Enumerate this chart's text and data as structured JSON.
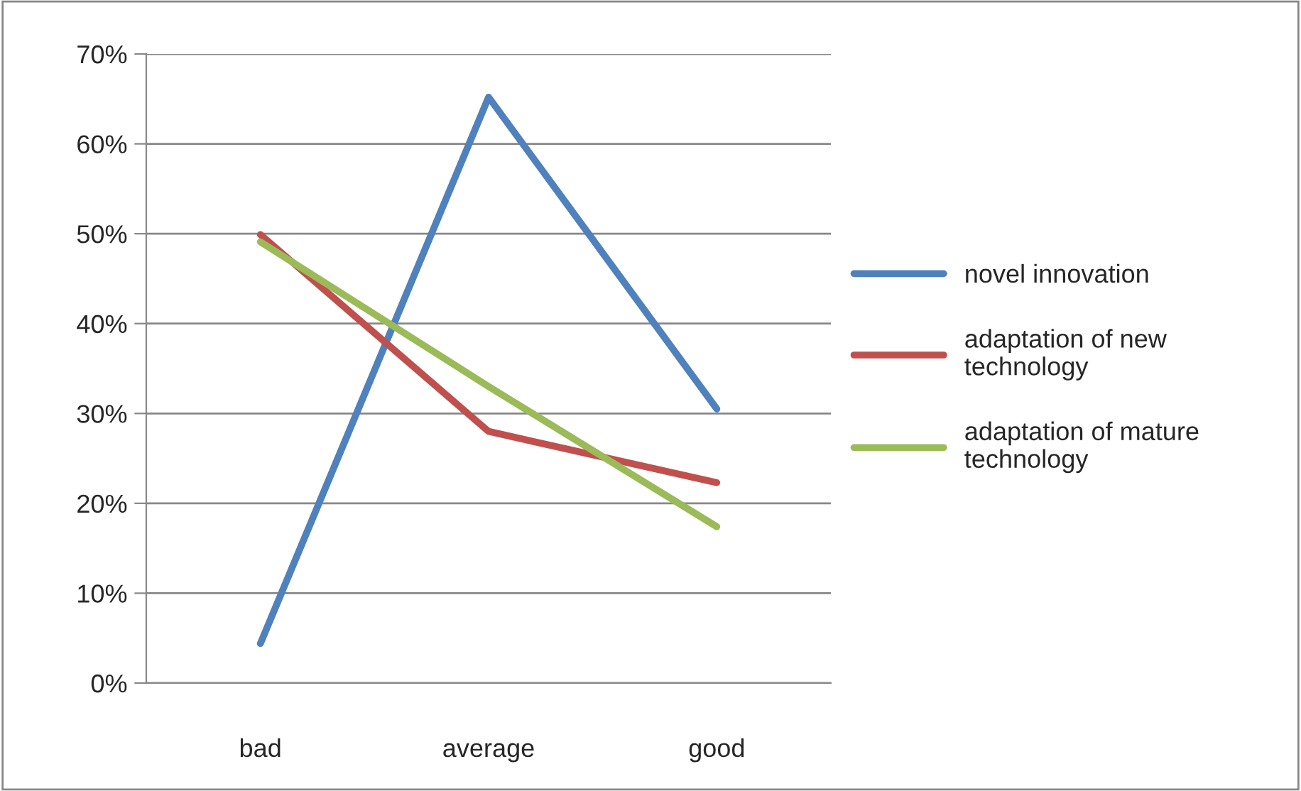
{
  "chart_data": {
    "type": "line",
    "categories": [
      "bad",
      "average",
      "good"
    ],
    "series": [
      {
        "name": "novel innovation",
        "color": "#4f81bd",
        "values": [
          4.4,
          65.2,
          30.5
        ]
      },
      {
        "name": "adaptation of new technology",
        "color": "#c0504d",
        "values": [
          49.9,
          28.0,
          22.3
        ]
      },
      {
        "name": "adaptation of mature technology",
        "color": "#9bbb59",
        "values": [
          49.1,
          33.0,
          17.4
        ]
      }
    ],
    "ylim": [
      0,
      70
    ],
    "yticks": [
      {
        "value": 0,
        "label": "0%"
      },
      {
        "value": 10,
        "label": "10%"
      },
      {
        "value": 20,
        "label": "20%"
      },
      {
        "value": 30,
        "label": "30%"
      },
      {
        "value": 40,
        "label": "40%"
      },
      {
        "value": 50,
        "label": "50%"
      },
      {
        "value": 60,
        "label": "60%"
      },
      {
        "value": 70,
        "label": "70%"
      }
    ],
    "grid": "y",
    "legend": "right",
    "marker": "none",
    "line_style": "solid"
  }
}
